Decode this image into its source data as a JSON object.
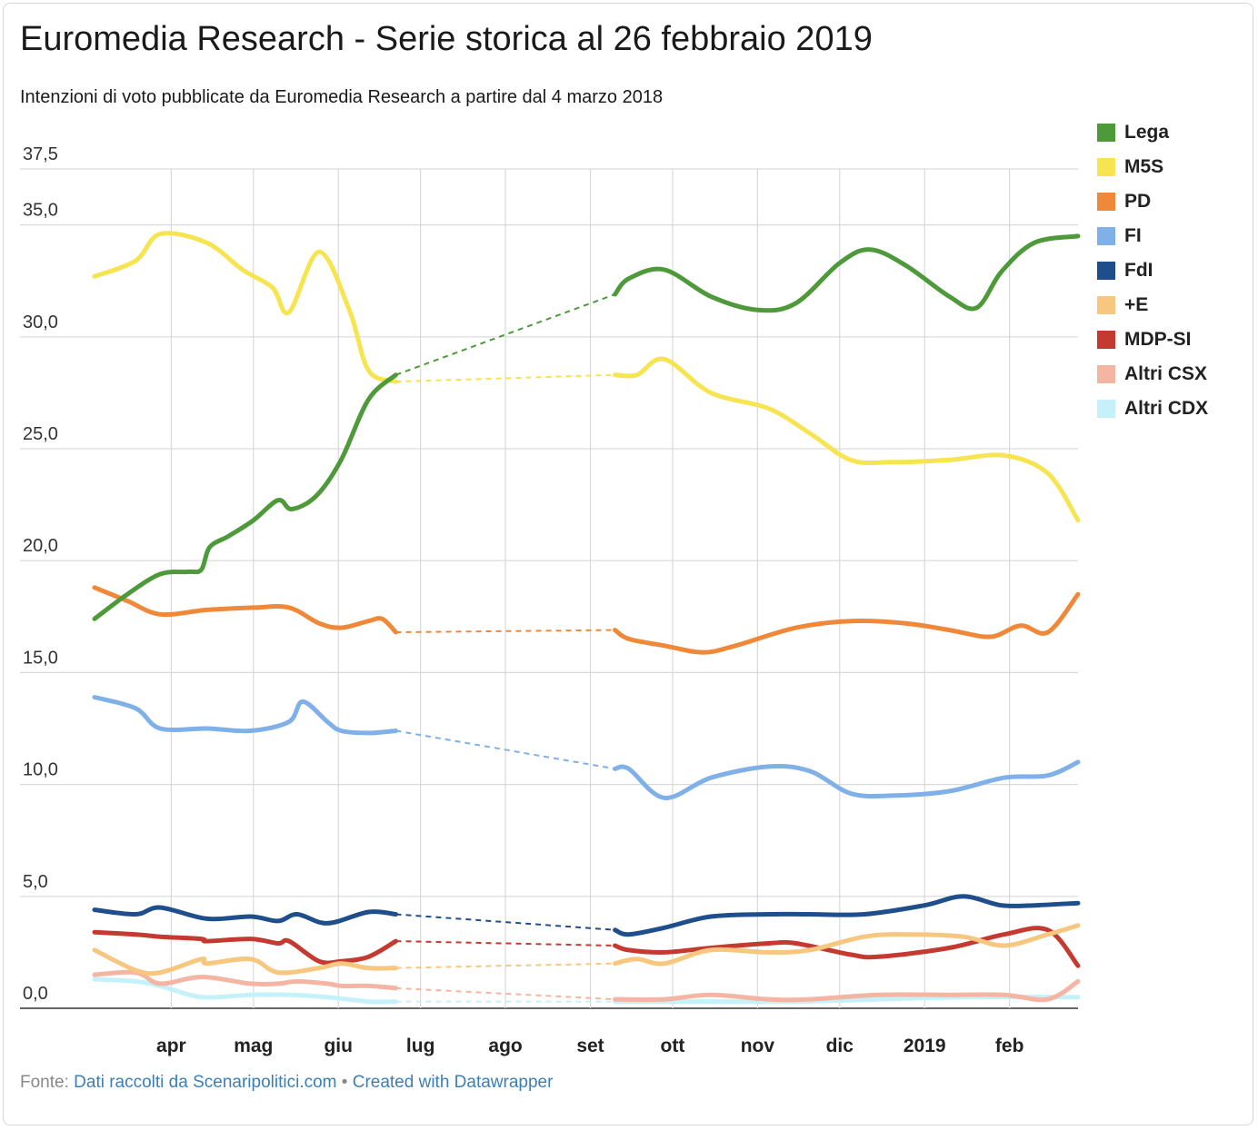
{
  "chart_data": {
    "type": "line",
    "title": "Euromedia Research - Serie storica al 26 febbraio 2019",
    "subtitle": "Intenzioni di voto pubblicate da Euromedia Research a partire dal 4 marzo 2018",
    "xlabel": "",
    "ylabel": "",
    "x_range": [
      "2018-03-04",
      "2019-02-26"
    ],
    "ylim": [
      0,
      37.5
    ],
    "y_ticks": [
      "0,0",
      "5,0",
      "10,0",
      "15,0",
      "20,0",
      "25,0",
      "30,0",
      "35,0",
      "37,5"
    ],
    "y_tick_values": [
      0,
      5,
      10,
      15,
      20,
      25,
      30,
      35,
      37.5
    ],
    "x_ticks": [
      {
        "date": "2018-04-01",
        "label": "apr"
      },
      {
        "date": "2018-05-01",
        "label": "mag"
      },
      {
        "date": "2018-06-01",
        "label": "giu"
      },
      {
        "date": "2018-07-01",
        "label": "lug"
      },
      {
        "date": "2018-08-01",
        "label": "ago"
      },
      {
        "date": "2018-09-01",
        "label": "set"
      },
      {
        "date": "2018-10-01",
        "label": "ott"
      },
      {
        "date": "2018-11-01",
        "label": "nov"
      },
      {
        "date": "2018-12-01",
        "label": "dic"
      },
      {
        "date": "2019-01-01",
        "label": "2019"
      },
      {
        "date": "2019-02-01",
        "label": "feb"
      }
    ],
    "gap": [
      "2018-06-22",
      "2018-09-10"
    ],
    "grid": true,
    "legend_position": "right",
    "series": [
      {
        "name": "Lega",
        "color": "#4e9a3a",
        "points": [
          [
            "2018-03-04",
            17.4
          ],
          [
            "2018-03-16",
            18.5
          ],
          [
            "2018-03-28",
            19.4
          ],
          [
            "2018-04-07",
            19.5
          ],
          [
            "2018-04-12",
            19.6
          ],
          [
            "2018-04-15",
            20.6
          ],
          [
            "2018-04-22",
            21.1
          ],
          [
            "2018-05-01",
            21.8
          ],
          [
            "2018-05-10",
            22.7
          ],
          [
            "2018-05-15",
            22.3
          ],
          [
            "2018-05-24",
            22.9
          ],
          [
            "2018-06-02",
            24.5
          ],
          [
            "2018-06-12",
            27.2
          ],
          [
            "2018-06-22",
            28.3
          ],
          [
            "2018-09-10",
            31.9
          ],
          [
            "2018-09-15",
            32.6
          ],
          [
            "2018-09-28",
            33.0
          ],
          [
            "2018-10-15",
            31.8
          ],
          [
            "2018-11-01",
            31.2
          ],
          [
            "2018-11-15",
            31.5
          ],
          [
            "2018-12-01",
            33.3
          ],
          [
            "2018-12-12",
            33.9
          ],
          [
            "2018-12-25",
            33.2
          ],
          [
            "2019-01-10",
            31.8
          ],
          [
            "2019-01-20",
            31.3
          ],
          [
            "2019-01-29",
            32.9
          ],
          [
            "2019-02-10",
            34.2
          ],
          [
            "2019-02-26",
            34.5
          ]
        ]
      },
      {
        "name": "M5S",
        "color": "#f6e451",
        "points": [
          [
            "2018-03-04",
            32.7
          ],
          [
            "2018-03-19",
            33.4
          ],
          [
            "2018-03-28",
            34.6
          ],
          [
            "2018-04-14",
            34.2
          ],
          [
            "2018-04-27",
            33.0
          ],
          [
            "2018-05-08",
            32.2
          ],
          [
            "2018-05-14",
            31.1
          ],
          [
            "2018-05-25",
            33.8
          ],
          [
            "2018-06-05",
            31.2
          ],
          [
            "2018-06-12",
            28.5
          ],
          [
            "2018-06-22",
            28.0
          ],
          [
            "2018-09-10",
            28.3
          ],
          [
            "2018-09-18",
            28.3
          ],
          [
            "2018-09-28",
            29.0
          ],
          [
            "2018-10-15",
            27.5
          ],
          [
            "2018-11-05",
            26.8
          ],
          [
            "2018-11-20",
            25.7
          ],
          [
            "2018-12-05",
            24.5
          ],
          [
            "2018-12-20",
            24.4
          ],
          [
            "2019-01-10",
            24.5
          ],
          [
            "2019-01-30",
            24.7
          ],
          [
            "2019-02-15",
            23.9
          ],
          [
            "2019-02-26",
            21.8
          ]
        ]
      },
      {
        "name": "PD",
        "color": "#f0883a",
        "points": [
          [
            "2018-03-04",
            18.8
          ],
          [
            "2018-03-16",
            18.2
          ],
          [
            "2018-03-28",
            17.6
          ],
          [
            "2018-04-14",
            17.8
          ],
          [
            "2018-05-01",
            17.9
          ],
          [
            "2018-05-14",
            17.9
          ],
          [
            "2018-05-25",
            17.2
          ],
          [
            "2018-06-02",
            17.0
          ],
          [
            "2018-06-12",
            17.3
          ],
          [
            "2018-06-17",
            17.4
          ],
          [
            "2018-06-22",
            16.8
          ],
          [
            "2018-09-10",
            16.9
          ],
          [
            "2018-09-15",
            16.5
          ],
          [
            "2018-09-28",
            16.2
          ],
          [
            "2018-10-12",
            15.9
          ],
          [
            "2018-10-24",
            16.2
          ],
          [
            "2018-11-15",
            17.0
          ],
          [
            "2018-12-05",
            17.3
          ],
          [
            "2018-12-25",
            17.2
          ],
          [
            "2019-01-10",
            16.9
          ],
          [
            "2019-01-25",
            16.6
          ],
          [
            "2019-02-05",
            17.1
          ],
          [
            "2019-02-15",
            16.8
          ],
          [
            "2019-02-26",
            18.5
          ]
        ]
      },
      {
        "name": "FI",
        "color": "#7fb0e8",
        "points": [
          [
            "2018-03-04",
            13.9
          ],
          [
            "2018-03-19",
            13.4
          ],
          [
            "2018-03-28",
            12.5
          ],
          [
            "2018-04-14",
            12.5
          ],
          [
            "2018-04-30",
            12.4
          ],
          [
            "2018-05-14",
            12.8
          ],
          [
            "2018-05-19",
            13.7
          ],
          [
            "2018-05-28",
            12.8
          ],
          [
            "2018-06-02",
            12.4
          ],
          [
            "2018-06-12",
            12.3
          ],
          [
            "2018-06-22",
            12.4
          ],
          [
            "2018-09-10",
            10.7
          ],
          [
            "2018-09-15",
            10.7
          ],
          [
            "2018-09-28",
            9.4
          ],
          [
            "2018-10-15",
            10.3
          ],
          [
            "2018-11-05",
            10.8
          ],
          [
            "2018-11-20",
            10.6
          ],
          [
            "2018-12-05",
            9.6
          ],
          [
            "2018-12-20",
            9.5
          ],
          [
            "2019-01-10",
            9.7
          ],
          [
            "2019-01-30",
            10.3
          ],
          [
            "2019-02-15",
            10.4
          ],
          [
            "2019-02-26",
            11.0
          ]
        ]
      },
      {
        "name": "FdI",
        "color": "#1f4e8c",
        "points": [
          [
            "2018-03-04",
            4.4
          ],
          [
            "2018-03-19",
            4.2
          ],
          [
            "2018-03-28",
            4.5
          ],
          [
            "2018-04-14",
            4.0
          ],
          [
            "2018-04-30",
            4.1
          ],
          [
            "2018-05-10",
            3.9
          ],
          [
            "2018-05-17",
            4.2
          ],
          [
            "2018-05-28",
            3.8
          ],
          [
            "2018-06-12",
            4.3
          ],
          [
            "2018-06-22",
            4.2
          ],
          [
            "2018-09-10",
            3.5
          ],
          [
            "2018-09-15",
            3.3
          ],
          [
            "2018-09-28",
            3.6
          ],
          [
            "2018-10-15",
            4.1
          ],
          [
            "2018-11-05",
            4.2
          ],
          [
            "2018-11-20",
            4.2
          ],
          [
            "2018-12-10",
            4.2
          ],
          [
            "2019-01-01",
            4.6
          ],
          [
            "2019-01-15",
            5.0
          ],
          [
            "2019-01-29",
            4.6
          ],
          [
            "2019-02-10",
            4.6
          ],
          [
            "2019-02-26",
            4.7
          ]
        ]
      },
      {
        "name": "+E",
        "color": "#f7c67f",
        "points": [
          [
            "2018-03-04",
            2.6
          ],
          [
            "2018-03-19",
            1.7
          ],
          [
            "2018-03-28",
            1.6
          ],
          [
            "2018-04-12",
            2.2
          ],
          [
            "2018-04-14",
            2.0
          ],
          [
            "2018-04-30",
            2.2
          ],
          [
            "2018-05-10",
            1.6
          ],
          [
            "2018-05-25",
            1.8
          ],
          [
            "2018-06-02",
            2.0
          ],
          [
            "2018-06-12",
            1.8
          ],
          [
            "2018-06-22",
            1.8
          ],
          [
            "2018-09-10",
            2.0
          ],
          [
            "2018-09-18",
            2.2
          ],
          [
            "2018-09-28",
            2.0
          ],
          [
            "2018-10-15",
            2.6
          ],
          [
            "2018-11-05",
            2.5
          ],
          [
            "2018-11-20",
            2.6
          ],
          [
            "2018-12-10",
            3.2
          ],
          [
            "2018-12-25",
            3.3
          ],
          [
            "2019-01-15",
            3.2
          ],
          [
            "2019-01-30",
            2.8
          ],
          [
            "2019-02-15",
            3.3
          ],
          [
            "2019-02-26",
            3.7
          ]
        ]
      },
      {
        "name": "MDP-SI",
        "color": "#c43a30",
        "points": [
          [
            "2018-03-04",
            3.4
          ],
          [
            "2018-03-19",
            3.3
          ],
          [
            "2018-03-28",
            3.2
          ],
          [
            "2018-04-12",
            3.1
          ],
          [
            "2018-04-14",
            3.0
          ],
          [
            "2018-04-30",
            3.1
          ],
          [
            "2018-05-10",
            2.9
          ],
          [
            "2018-05-14",
            3.0
          ],
          [
            "2018-05-25",
            2.1
          ],
          [
            "2018-06-02",
            2.1
          ],
          [
            "2018-06-12",
            2.3
          ],
          [
            "2018-06-22",
            3.0
          ],
          [
            "2018-09-10",
            2.8
          ],
          [
            "2018-09-15",
            2.6
          ],
          [
            "2018-09-28",
            2.5
          ],
          [
            "2018-10-15",
            2.7
          ],
          [
            "2018-11-05",
            2.9
          ],
          [
            "2018-11-15",
            2.9
          ],
          [
            "2018-12-05",
            2.4
          ],
          [
            "2018-12-15",
            2.3
          ],
          [
            "2019-01-10",
            2.7
          ],
          [
            "2019-01-30",
            3.3
          ],
          [
            "2019-02-15",
            3.5
          ],
          [
            "2019-02-26",
            1.9
          ]
        ]
      },
      {
        "name": "Altri CSX",
        "color": "#f4b5a3",
        "points": [
          [
            "2018-03-04",
            1.5
          ],
          [
            "2018-03-19",
            1.6
          ],
          [
            "2018-03-28",
            1.1
          ],
          [
            "2018-04-12",
            1.4
          ],
          [
            "2018-04-30",
            1.1
          ],
          [
            "2018-05-10",
            1.1
          ],
          [
            "2018-05-17",
            1.2
          ],
          [
            "2018-05-28",
            1.1
          ],
          [
            "2018-06-02",
            1.0
          ],
          [
            "2018-06-12",
            1.0
          ],
          [
            "2018-06-22",
            0.9
          ],
          [
            "2018-09-10",
            0.4
          ],
          [
            "2018-09-28",
            0.4
          ],
          [
            "2018-10-15",
            0.6
          ],
          [
            "2018-11-05",
            0.4
          ],
          [
            "2018-11-20",
            0.4
          ],
          [
            "2018-12-15",
            0.6
          ],
          [
            "2019-01-10",
            0.6
          ],
          [
            "2019-01-30",
            0.6
          ],
          [
            "2019-02-15",
            0.4
          ],
          [
            "2019-02-26",
            1.2
          ]
        ]
      },
      {
        "name": "Altri CDX",
        "color": "#c5f1fb",
        "points": [
          [
            "2018-03-04",
            1.3
          ],
          [
            "2018-03-19",
            1.2
          ],
          [
            "2018-03-28",
            1.0
          ],
          [
            "2018-04-12",
            0.5
          ],
          [
            "2018-04-30",
            0.6
          ],
          [
            "2018-05-14",
            0.6
          ],
          [
            "2018-05-28",
            0.5
          ],
          [
            "2018-06-12",
            0.3
          ],
          [
            "2018-06-22",
            0.3
          ],
          [
            "2018-09-10",
            0.3
          ],
          [
            "2018-10-15",
            0.3
          ],
          [
            "2018-11-15",
            0.3
          ],
          [
            "2018-12-15",
            0.4
          ],
          [
            "2019-01-15",
            0.5
          ],
          [
            "2019-02-26",
            0.5
          ]
        ]
      }
    ]
  },
  "footer": {
    "source_prefix": "Fonte: ",
    "source_link": "Dati raccolti da Scenaripolitici.com",
    "separator": " • ",
    "credit_link": "Created with Datawrapper"
  }
}
